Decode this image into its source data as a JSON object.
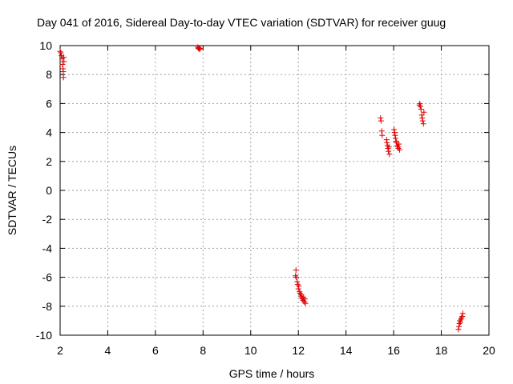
{
  "chart_data": {
    "type": "scatter",
    "title": "Day 041 of 2016, Sidereal Day-to-day VTEC variation (SDTVAR) for receiver guug",
    "xlabel": "GPS time / hours",
    "ylabel": "SDTVAR / TECUs",
    "xlim": [
      2,
      20
    ],
    "ylim": [
      -10,
      10
    ],
    "xticks": [
      2,
      4,
      6,
      8,
      10,
      12,
      14,
      16,
      18,
      20
    ],
    "yticks": [
      -10,
      -8,
      -6,
      -4,
      -2,
      0,
      2,
      4,
      6,
      8,
      10
    ],
    "grid": true,
    "marker": "+",
    "color": "#e00000",
    "series": [
      {
        "name": "SDTVAR",
        "x": [
          2.0,
          2.03,
          2.06,
          2.09,
          2.1,
          2.12,
          2.13,
          2.14,
          2.15,
          2.16,
          7.78,
          7.8,
          7.82,
          7.85,
          7.88,
          11.88,
          11.9,
          11.92,
          11.95,
          11.97,
          12.0,
          12.02,
          12.05,
          12.07,
          12.1,
          12.12,
          12.15,
          12.17,
          12.2,
          12.22,
          12.25,
          12.27,
          12.3,
          15.45,
          15.47,
          15.5,
          15.52,
          15.7,
          15.72,
          15.74,
          15.76,
          15.78,
          15.8,
          15.82,
          16.02,
          16.04,
          16.06,
          16.08,
          16.1,
          16.12,
          16.15,
          16.18,
          16.2,
          16.22,
          16.25,
          17.08,
          17.1,
          17.12,
          17.15,
          17.18,
          17.2,
          17.22,
          17.25,
          17.27,
          18.72,
          18.74,
          18.76,
          18.78,
          18.8,
          18.82,
          18.85,
          18.88,
          18.9
        ],
        "y": [
          9.6,
          9.5,
          9.3,
          9.1,
          8.7,
          8.4,
          8.2,
          7.8,
          9.2,
          8.9,
          9.9,
          9.8,
          9.85,
          9.75,
          9.8,
          -5.9,
          -5.5,
          -6.0,
          -6.3,
          -6.5,
          -6.8,
          -6.6,
          -7.0,
          -7.1,
          -7.3,
          -7.2,
          -7.4,
          -7.5,
          -7.6,
          -7.4,
          -7.7,
          -7.5,
          -7.8,
          5.0,
          4.8,
          4.1,
          3.8,
          3.5,
          3.3,
          3.1,
          2.9,
          2.7,
          3.0,
          2.5,
          4.2,
          4.0,
          3.8,
          3.6,
          3.4,
          3.3,
          3.1,
          3.0,
          2.9,
          3.2,
          2.8,
          5.9,
          6.0,
          5.8,
          5.6,
          5.2,
          5.0,
          4.8,
          4.6,
          5.4,
          -9.6,
          -9.4,
          -9.2,
          -9.0,
          -9.1,
          -8.9,
          -8.8,
          -8.7,
          -8.5
        ]
      }
    ]
  }
}
